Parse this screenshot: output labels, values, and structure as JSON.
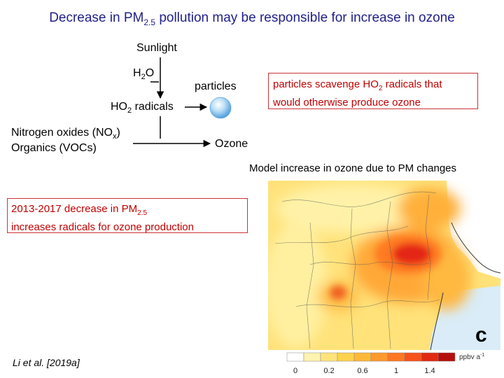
{
  "title": {
    "pre": "Decrease in PM",
    "sub": "2.5",
    "post": " pollution may be responsible for increase in ozone"
  },
  "diagram": {
    "sunlight": "Sunlight",
    "h2o": {
      "pre": "H",
      "sub": "2",
      "post": "O"
    },
    "particles": "particles",
    "ho2": {
      "pre": "HO",
      "sub": "2",
      "post": " radicals"
    },
    "nox": {
      "pre": "Nitrogen oxides (NO",
      "sub": "x",
      "post": ")"
    },
    "vocs": "Organics (VOCs)",
    "ozone": "Ozone"
  },
  "scavenge_box": {
    "pre": "particles scavenge HO",
    "sub": "2",
    "post": " radicals that",
    "line2": "would otherwise produce ozone"
  },
  "pm_box": {
    "pre": "2013-2017 decrease in PM",
    "sub": "2.5",
    "line2": "increases radicals for ozone production"
  },
  "map": {
    "caption": "Model increase in ozone due to PM changes",
    "panel_label": "c",
    "units": "ppbv a",
    "units_sup": "-1",
    "colorbar_ticks": [
      "0",
      "0.2",
      "0.6",
      "1",
      "1.4"
    ],
    "colorbar_colors": [
      "#ffffff",
      "#fff3b0",
      "#ffe47a",
      "#ffd24d",
      "#ffb838",
      "#ff9a2e",
      "#ff7722",
      "#f7521a",
      "#e02a12",
      "#b5100c"
    ]
  },
  "citation": "Li et al. [2019a]",
  "colors": {
    "title": "#1f1f8a",
    "box_text": "#c00000",
    "box_border": "#cc3333"
  }
}
